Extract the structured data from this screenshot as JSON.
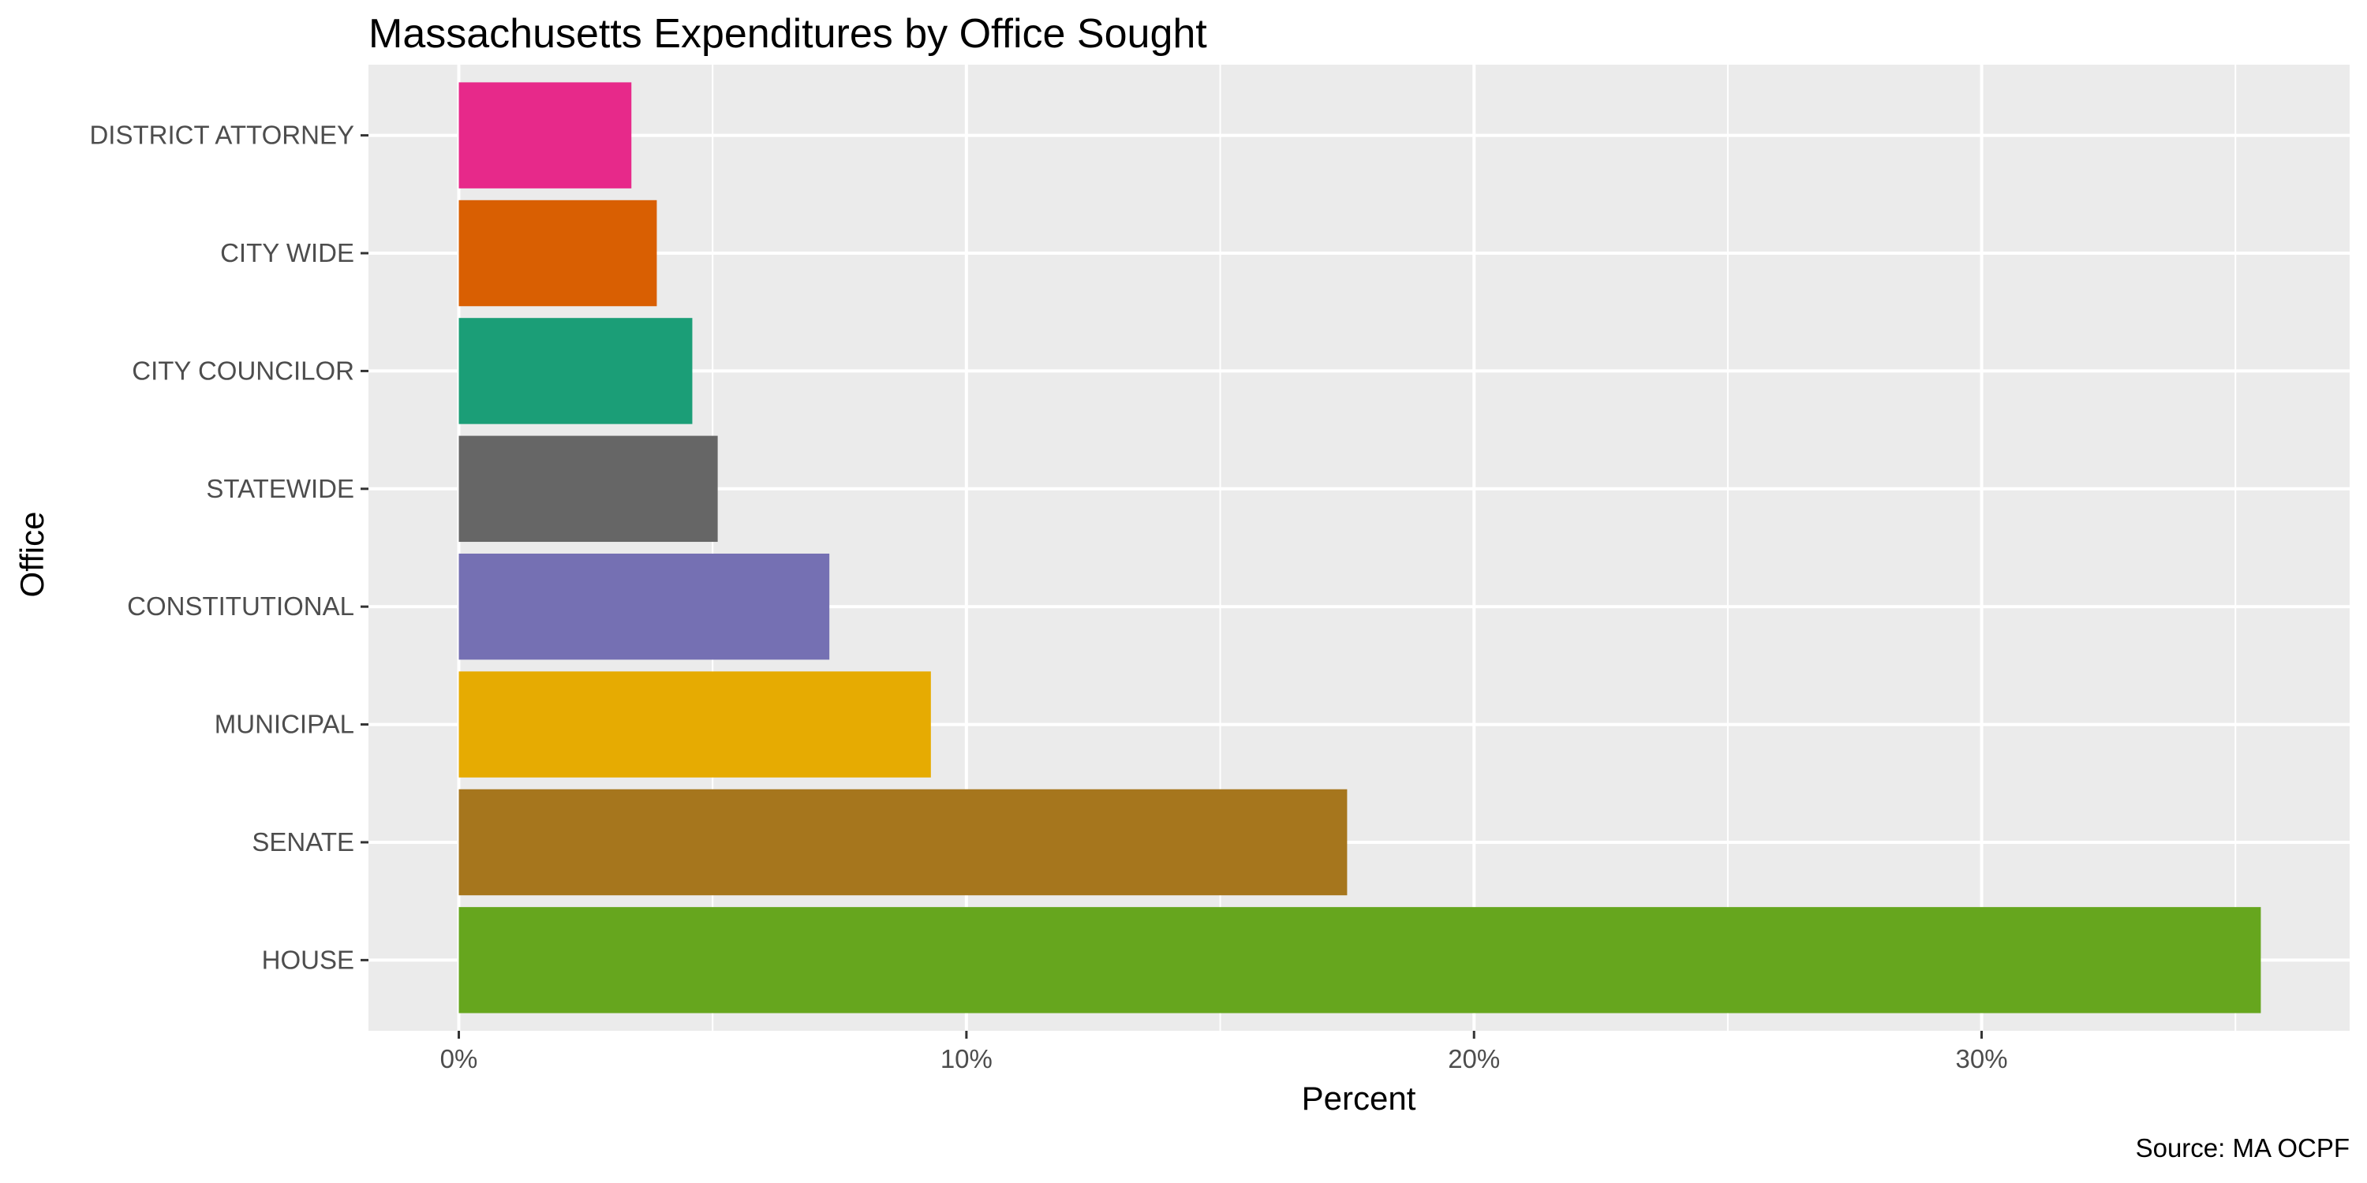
{
  "chart_data": {
    "type": "bar",
    "orientation": "horizontal",
    "title": "Massachusetts Expenditures by Office Sought",
    "xlabel": "Percent",
    "ylabel": "Office",
    "caption": "Source: MA OCPF",
    "categories": [
      "HOUSE",
      "SENATE",
      "MUNICIPAL",
      "CONSTITUTIONAL",
      "STATEWIDE",
      "CITY COUNCILOR",
      "CITY WIDE",
      "DISTRICT ATTORNEY"
    ],
    "values": [
      35.5,
      17.5,
      9.3,
      7.3,
      5.1,
      4.6,
      3.9,
      3.4
    ],
    "colors": [
      "#66a61e",
      "#a6761d",
      "#e6ab02",
      "#7570b3",
      "#666666",
      "#1b9e77",
      "#d95f02",
      "#e7298a"
    ],
    "x_ticks": [
      0,
      10,
      20,
      30
    ],
    "x_tick_labels": [
      "0%",
      "10%",
      "20%",
      "30%"
    ],
    "xlim": [
      -1.78,
      37.25
    ],
    "grid": true,
    "legend": "none"
  }
}
